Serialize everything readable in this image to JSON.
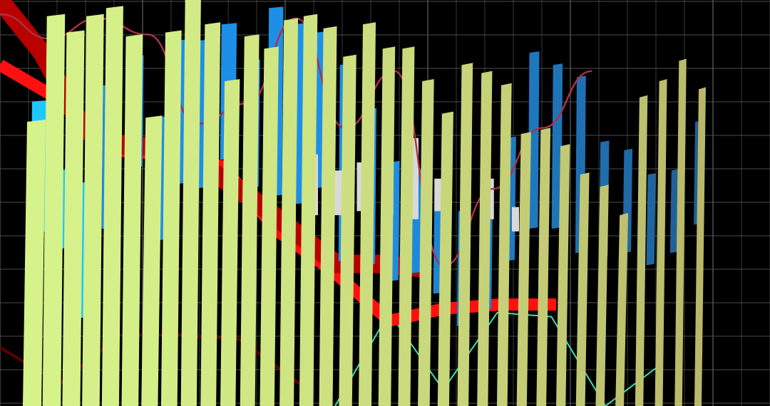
{
  "chart_data": {
    "type": "bar",
    "title": "",
    "xlabel": "",
    "ylabel": "",
    "grid": true,
    "colors": {
      "background": "#000000",
      "grid": "#5a5a5a",
      "green_bars": "#d6f28a",
      "green_bars_far": "#b9b86a",
      "blue_bars": "#1e8fe6",
      "blue_bars_far": "#1f5f95",
      "cyan_bars": "#1ec8ff",
      "gray_candles": "#d9d9d9",
      "red_band": "#ff1010",
      "dark_red_band": "#b80000",
      "crimson_curve": "#b03045",
      "teal_line": "#3fe0b0",
      "maroon_line": "#5a0000"
    },
    "series": [
      {
        "kind": "tall-bars",
        "values": [
          0.7,
          0.96,
          0.92,
          0.96,
          0.98,
          0.91,
          0.71,
          0.92,
          1.0,
          0.94,
          0.8,
          0.91,
          0.88,
          0.95,
          0.96,
          0.93,
          0.86,
          0.94,
          0.88,
          0.88,
          0.8,
          0.72,
          0.84,
          0.82,
          0.79,
          0.67,
          0.68,
          0.64,
          0.57,
          0.54,
          0.47,
          0.76,
          0.8,
          0.85,
          0.78
        ]
      },
      {
        "kind": "floating-bars",
        "ranges": [
          [
            0.43,
            0.75
          ],
          [
            0.39,
            0.58
          ],
          [
            0.22,
            0.55
          ],
          [
            0.44,
            0.79
          ],
          [
            0.59,
            0.86
          ],
          [
            0.41,
            0.71
          ],
          [
            0.55,
            0.9
          ],
          [
            0.54,
            0.9
          ],
          [
            0.61,
            0.94
          ],
          [
            0.54,
            0.85
          ],
          [
            0.52,
            0.98
          ],
          [
            0.5,
            0.94
          ],
          [
            0.54,
            0.92
          ],
          [
            0.36,
            0.84
          ],
          [
            0.35,
            0.73
          ],
          [
            0.31,
            0.6
          ],
          [
            0.33,
            0.58
          ],
          [
            0.28,
            0.55
          ],
          [
            0.2,
            0.48
          ],
          [
            0.24,
            0.51
          ],
          [
            0.36,
            0.66
          ],
          [
            0.44,
            0.87
          ],
          [
            0.44,
            0.84
          ],
          [
            0.38,
            0.81
          ],
          [
            0.37,
            0.65
          ],
          [
            0.38,
            0.63
          ],
          [
            0.35,
            0.57
          ],
          [
            0.38,
            0.58
          ],
          [
            0.45,
            0.7
          ]
        ]
      },
      {
        "kind": "candles",
        "ranges": [
          [
            0.47,
            0.62
          ],
          [
            0.47,
            0.58
          ],
          [
            0.48,
            0.6
          ],
          [
            0.47,
            0.66
          ],
          [
            0.46,
            0.66
          ],
          [
            0.48,
            0.56
          ],
          [
            0.48,
            0.57
          ],
          [
            0.46,
            0.56
          ],
          [
            0.43,
            0.49
          ]
        ]
      },
      {
        "kind": "band",
        "values": [
          0.84,
          0.76,
          0.63,
          0.62,
          0.59,
          0.43,
          0.33,
          0.21,
          0.24,
          0.25,
          0.25
        ]
      },
      {
        "kind": "band",
        "values": [
          1.0,
          0.87,
          0.68,
          0.64,
          0.64,
          0.58,
          0.51,
          0.43,
          0.35,
          0.35,
          0.34
        ]
      },
      {
        "kind": "curve",
        "values": [
          1.0,
          0.94,
          0.99,
          0.95,
          0.73,
          0.78,
          0.99,
          0.72,
          0.86,
          0.38,
          0.57,
          0.72,
          0.86
        ]
      },
      {
        "kind": "line",
        "values": [
          0.32,
          0.23,
          0.35,
          0.35,
          0.34,
          0.23
        ]
      },
      {
        "kind": "line",
        "values": [
          0.0,
          0.23,
          0.04,
          0.23,
          0.22,
          0.0,
          0.1
        ]
      }
    ]
  }
}
